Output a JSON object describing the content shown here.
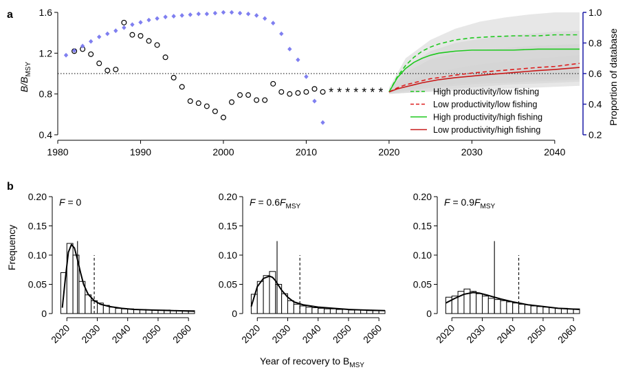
{
  "panel_a": {
    "letter": "a",
    "y_label": "B/B",
    "y_label_sub": "MSY",
    "y2_label": "Proportion of database"
  },
  "panel_b": {
    "letter": "b",
    "y_label": "Frequency",
    "x_label": "Year of recovery to B",
    "x_label_sub": "MSY"
  },
  "chart_data": [
    {
      "type": "line",
      "panel": "a",
      "xlim": [
        1980,
        2043
      ],
      "ylim": [
        0.4,
        1.6
      ],
      "y2lim": [
        0.2,
        1.0
      ],
      "x_ticks": [
        "1980",
        "1990",
        "2000",
        "2010",
        "2020",
        "2030",
        "2040"
      ],
      "y_ticks": [
        "0.4",
        "0.8",
        "1.2",
        "1.6"
      ],
      "y2_ticks": [
        "0.2",
        "0.4",
        "0.6",
        "0.8",
        "1.0"
      ],
      "reference_line_y": 1.0,
      "colors": {
        "proportion": "#7f7ff0",
        "low_fishing_high_prod": "#1ec81e",
        "low_fishing_low_prod": "#dd1c1c",
        "high_fishing_high_prod": "#1ec81e",
        "high_fishing_low_prod": "#c81818",
        "band": "#d4d4d4",
        "right_axis": "#1a1aa6"
      },
      "series": [
        {
          "name": "",
          "axis": "left",
          "style": "open-circles",
          "x": [
            1982,
            1983,
            1984,
            1985,
            1986,
            1987,
            1988,
            1989,
            1990,
            1991,
            1992,
            1993,
            1994,
            1995,
            1996,
            1997,
            1998,
            1999,
            2000,
            2001,
            2002,
            2003,
            2004,
            2005,
            2006,
            2007,
            2008,
            2009,
            2010,
            2011,
            2012
          ],
          "y": [
            1.22,
            1.24,
            1.19,
            1.1,
            1.03,
            1.04,
            1.5,
            1.38,
            1.37,
            1.32,
            1.28,
            1.16,
            0.96,
            0.87,
            0.73,
            0.71,
            0.68,
            0.63,
            0.57,
            0.72,
            0.79,
            0.79,
            0.74,
            0.74,
            0.9,
            0.82,
            0.8,
            0.81,
            0.82,
            0.85,
            0.82
          ]
        },
        {
          "name": "",
          "axis": "left",
          "style": "asterisks",
          "x": [
            2013,
            2014,
            2015,
            2016,
            2017,
            2018,
            2019
          ],
          "y": [
            0.82,
            0.82,
            0.82,
            0.82,
            0.82,
            0.82,
            0.82
          ]
        },
        {
          "name": "",
          "axis": "right",
          "style": "diamonds",
          "x": [
            1981,
            1982,
            1983,
            1984,
            1985,
            1986,
            1987,
            1988,
            1989,
            1990,
            1991,
            1992,
            1993,
            1994,
            1995,
            1996,
            1997,
            1998,
            1999,
            2000,
            2001,
            2002,
            2003,
            2004,
            2005,
            2006,
            2007,
            2008,
            2009,
            2010,
            2011,
            2012
          ],
          "y": [
            0.72,
            0.75,
            0.78,
            0.81,
            0.84,
            0.86,
            0.88,
            0.9,
            0.92,
            0.935,
            0.95,
            0.96,
            0.97,
            0.975,
            0.98,
            0.985,
            0.99,
            0.99,
            0.995,
            1.0,
            1.0,
            0.995,
            0.99,
            0.98,
            0.96,
            0.93,
            0.86,
            0.76,
            0.69,
            0.58,
            0.42,
            0.28
          ]
        },
        {
          "name": "High productivity/low fishing",
          "axis": "left",
          "style": "dashed",
          "x": [
            2020,
            2021,
            2022,
            2023,
            2024,
            2025,
            2026,
            2028,
            2030,
            2032,
            2035,
            2038,
            2040,
            2043
          ],
          "y": [
            0.82,
            0.97,
            1.08,
            1.16,
            1.22,
            1.26,
            1.29,
            1.33,
            1.35,
            1.36,
            1.37,
            1.37,
            1.38,
            1.38
          ]
        },
        {
          "name": "Low productivity/low fishing",
          "axis": "left",
          "style": "dashed",
          "x": [
            2020,
            2021,
            2022,
            2023,
            2024,
            2025,
            2026,
            2028,
            2030,
            2032,
            2035,
            2038,
            2040,
            2043
          ],
          "y": [
            0.82,
            0.86,
            0.89,
            0.91,
            0.93,
            0.95,
            0.96,
            0.985,
            1.005,
            1.02,
            1.04,
            1.06,
            1.07,
            1.1
          ]
        },
        {
          "name": "High productivity/high fishing",
          "axis": "left",
          "style": "solid",
          "x": [
            2020,
            2021,
            2022,
            2023,
            2024,
            2025,
            2026,
            2027,
            2028,
            2030,
            2032,
            2035,
            2038,
            2040,
            2043
          ],
          "y": [
            0.82,
            0.96,
            1.05,
            1.11,
            1.15,
            1.18,
            1.2,
            1.21,
            1.22,
            1.23,
            1.23,
            1.23,
            1.24,
            1.24,
            1.24
          ]
        },
        {
          "name": "Low productivity/high fishing",
          "axis": "left",
          "style": "solid",
          "x": [
            2020,
            2021,
            2022,
            2023,
            2024,
            2025,
            2026,
            2028,
            2030,
            2032,
            2035,
            2038,
            2040,
            2043
          ],
          "y": [
            0.82,
            0.85,
            0.87,
            0.89,
            0.91,
            0.925,
            0.94,
            0.96,
            0.975,
            0.99,
            1.01,
            1.03,
            1.04,
            1.06
          ]
        }
      ],
      "bands": [
        {
          "x": [
            2020,
            2022,
            2025,
            2028,
            2031,
            2034,
            2037,
            2040,
            2043
          ],
          "lower": [
            0.8,
            0.81,
            0.82,
            0.83,
            0.84,
            0.85,
            0.86,
            0.87,
            0.88
          ],
          "upper": [
            0.86,
            1.15,
            1.33,
            1.44,
            1.51,
            1.55,
            1.58,
            1.6,
            1.6
          ]
        },
        {
          "x": [
            2020,
            2022,
            2025,
            2028,
            2031,
            2034,
            2037,
            2040,
            2043
          ],
          "lower": [
            0.81,
            0.85,
            0.88,
            0.9,
            0.92,
            0.93,
            0.94,
            0.95,
            0.96
          ],
          "upper": [
            0.84,
            1.06,
            1.22,
            1.3,
            1.34,
            1.37,
            1.39,
            1.41,
            1.42
          ]
        },
        {
          "x": [
            2020,
            2022,
            2025,
            2028,
            2031,
            2034,
            2037,
            2040,
            2043
          ],
          "lower": [
            0.81,
            0.83,
            0.86,
            0.88,
            0.9,
            0.91,
            0.92,
            0.93,
            0.94
          ],
          "upper": [
            0.84,
            1.01,
            1.14,
            1.2,
            1.23,
            1.25,
            1.27,
            1.28,
            1.29
          ]
        },
        {
          "x": [
            2020,
            2022,
            2025,
            2028,
            2031,
            2034,
            2037,
            2040,
            2043
          ],
          "lower": [
            0.8,
            0.81,
            0.83,
            0.85,
            0.87,
            0.89,
            0.9,
            0.91,
            0.92
          ],
          "upper": [
            0.83,
            0.92,
            1.0,
            1.05,
            1.09,
            1.12,
            1.14,
            1.16,
            1.18
          ]
        }
      ]
    },
    {
      "type": "bar",
      "panel": "b1",
      "title": "F = 0",
      "title_parts": {
        "italic": "F",
        "text": " = 0",
        "coef": "",
        "sub": ""
      },
      "x_start": 2018,
      "bin_width": 2,
      "values": [
        0.07,
        0.12,
        0.1,
        0.055,
        0.032,
        0.022,
        0.018,
        0.014,
        0.011,
        0.009,
        0.008,
        0.008,
        0.007,
        0.007,
        0.006,
        0.006,
        0.006,
        0.006,
        0.005,
        0.005,
        0.005,
        0.005
      ],
      "density_x": [
        2018.5,
        2019.5,
        2020.5,
        2021.5,
        2022.5,
        2023.5,
        2024.5,
        2025.5,
        2027,
        2029,
        2031,
        2034,
        2038,
        2042,
        2048,
        2055,
        2062
      ],
      "density_y": [
        0.01,
        0.06,
        0.105,
        0.118,
        0.112,
        0.092,
        0.07,
        0.05,
        0.033,
        0.022,
        0.016,
        0.012,
        0.009,
        0.007,
        0.006,
        0.005,
        0.004
      ],
      "median": 2023.5,
      "mean": 2029,
      "xlim": [
        2017,
        2062
      ],
      "ylim": [
        0,
        0.2
      ],
      "x_ticks": [
        "2020",
        "2030",
        "2040",
        "2050",
        "2060"
      ],
      "y_ticks": [
        "0",
        "0.05",
        "0.10",
        "0.15",
        "0.20"
      ]
    },
    {
      "type": "bar",
      "panel": "b2",
      "title": "F = 0.6F MSY",
      "title_parts": {
        "italic": "F",
        "text": " = 0.6",
        "coef": "F",
        "sub": "MSY"
      },
      "x_start": 2018,
      "bin_width": 2,
      "values": [
        0.033,
        0.055,
        0.065,
        0.072,
        0.05,
        0.034,
        0.022,
        0.016,
        0.013,
        0.011,
        0.01,
        0.009,
        0.008,
        0.008,
        0.007,
        0.007,
        0.006,
        0.006,
        0.006,
        0.005,
        0.005,
        0.005
      ],
      "density_x": [
        2018,
        2020,
        2022,
        2024,
        2025,
        2026,
        2028,
        2030,
        2032,
        2035,
        2040,
        2045,
        2050,
        2055,
        2062
      ],
      "density_y": [
        0.012,
        0.046,
        0.06,
        0.064,
        0.062,
        0.056,
        0.04,
        0.028,
        0.02,
        0.015,
        0.011,
        0.009,
        0.007,
        0.006,
        0.005
      ],
      "median": 2026.5,
      "mean": 2034,
      "xlim": [
        2017,
        2062
      ],
      "ylim": [
        0,
        0.2
      ],
      "x_ticks": [
        "2020",
        "2030",
        "2040",
        "2050",
        "2060"
      ],
      "y_ticks": [
        "0",
        "0.05",
        "0.10",
        "0.15",
        "0.20"
      ]
    },
    {
      "type": "bar",
      "panel": "b3",
      "title": "F = 0.9F MSY",
      "title_parts": {
        "italic": "F",
        "text": " = 0.9",
        "coef": "F",
        "sub": "MSY"
      },
      "x_start": 2018,
      "bin_width": 2,
      "values": [
        0.028,
        0.03,
        0.038,
        0.042,
        0.038,
        0.034,
        0.03,
        0.026,
        0.024,
        0.022,
        0.02,
        0.018,
        0.016,
        0.015,
        0.013,
        0.012,
        0.011,
        0.01,
        0.009,
        0.009,
        0.008,
        0.008
      ],
      "density_x": [
        2018,
        2021,
        2024,
        2027,
        2029,
        2032,
        2036,
        2040,
        2045,
        2050,
        2055,
        2062
      ],
      "density_y": [
        0.018,
        0.026,
        0.033,
        0.036,
        0.035,
        0.031,
        0.025,
        0.02,
        0.015,
        0.012,
        0.009,
        0.007
      ],
      "median": 2034,
      "mean": 2042,
      "xlim": [
        2017,
        2062
      ],
      "ylim": [
        0,
        0.2
      ],
      "x_ticks": [
        "2020",
        "2030",
        "2040",
        "2050",
        "2060"
      ],
      "y_ticks": [
        "0",
        "0.05",
        "0.10",
        "0.15",
        "0.20"
      ]
    }
  ]
}
